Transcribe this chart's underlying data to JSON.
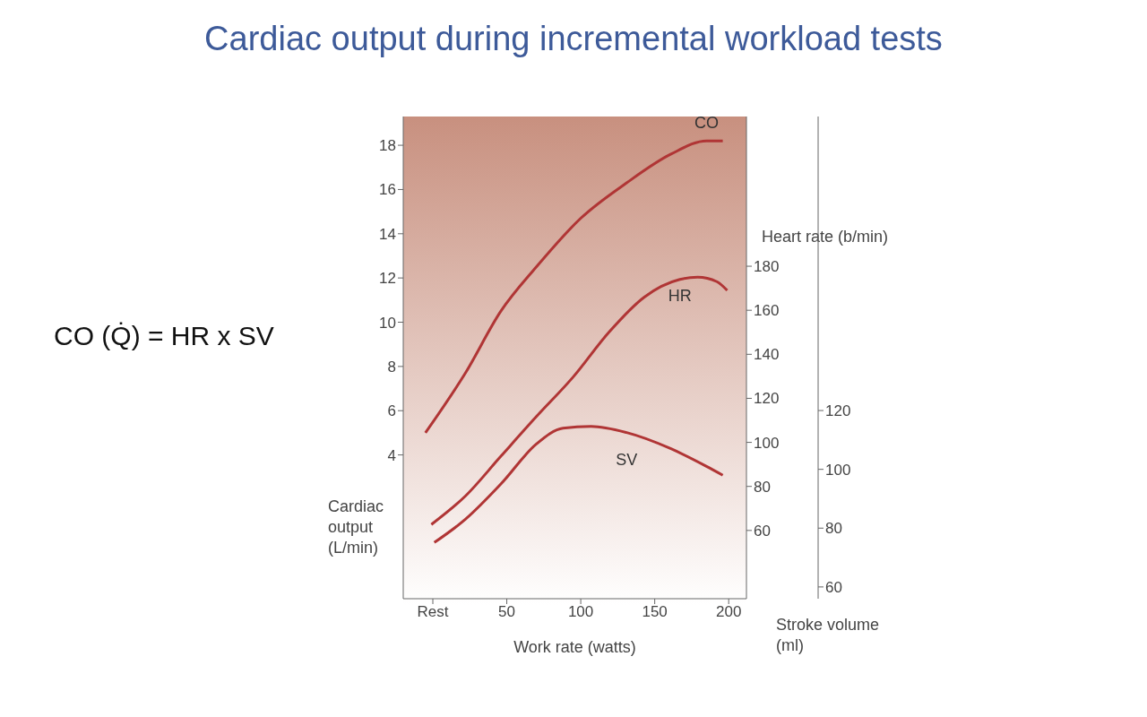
{
  "chart_data": {
    "type": "line",
    "title": "Cardiac output during incremental workload tests",
    "xlabel": "Work rate (watts)",
    "ylabel": "Cardiac output (L/min)",
    "y2label": "Heart rate (b/min)",
    "y3label": "Stroke volume (ml)",
    "annotations": [
      "CO (Q̇)  = HR x SV"
    ],
    "xlim": [
      -20,
      212
    ],
    "xticks": [
      {
        "value": 0,
        "label": "Rest"
      },
      50,
      100,
      150,
      200
    ],
    "ylim": [
      -2.5,
      19.3
    ],
    "yticks": [
      4,
      6,
      8,
      10,
      12,
      14,
      16,
      18
    ],
    "y2lim": [
      29,
      248
    ],
    "y2ticks": [
      60,
      80,
      100,
      120,
      140,
      160,
      180
    ],
    "y3lim": [
      56,
      220
    ],
    "y3ticks": [
      60,
      80,
      100,
      120
    ],
    "series": [
      {
        "name": "CO",
        "color": "#b03535",
        "x": [
          -5,
          22,
          46,
          70,
          100,
          131,
          161,
          185,
          196
        ],
        "values": [
          5.0,
          7.7,
          10.5,
          12.5,
          14.7,
          16.3,
          17.6,
          18.2,
          18.2
        ]
      },
      {
        "name": "HR",
        "color": "#b03535",
        "axis": "y2",
        "x": [
          -1,
          22,
          46,
          70,
          95,
          119,
          143,
          167,
          179,
          192,
          199
        ],
        "values": [
          62.7,
          75.6,
          93.7,
          111.7,
          129.8,
          150,
          166,
          174,
          175,
          173,
          169
        ]
      },
      {
        "name": "SV",
        "color": "#b03535",
        "axis": "y3",
        "x": [
          1,
          22,
          46,
          70,
          88,
          107,
          131,
          161,
          185,
          196
        ],
        "values": [
          75.1,
          83,
          95,
          108.6,
          114,
          114.6,
          112.5,
          107,
          101,
          98
        ]
      }
    ]
  }
}
